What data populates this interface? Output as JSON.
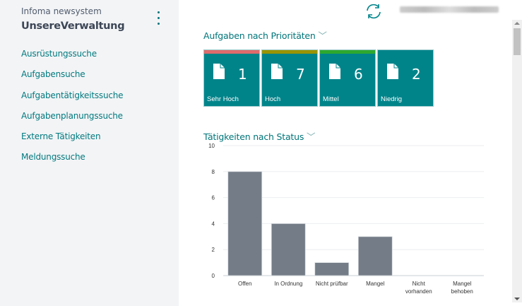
{
  "sidebar": {
    "app_name": "Infoma newsystem",
    "company": "UnsereVerwaltung",
    "items": [
      "Ausrüstungssuche",
      "Aufgabensuche",
      "Aufgabentätigkeitssuche",
      "Aufgabenplanungssuche",
      "Externe Tätigkeiten",
      "Meldungssuche"
    ]
  },
  "priorities": {
    "title": "Aufgaben nach Prioritäten",
    "tiles": [
      {
        "label": "Sehr Hoch",
        "count": "1",
        "color": "#e06b6b"
      },
      {
        "label": "Hoch",
        "count": "7",
        "color": "#9a9400"
      },
      {
        "label": "Mittel",
        "count": "6",
        "color": "#2ea82e"
      },
      {
        "label": "Niedrig",
        "count": "2",
        "color": ""
      }
    ]
  },
  "chart_data": {
    "type": "bar",
    "title": "Tätigkeiten nach Status",
    "categories": [
      [
        "Offen"
      ],
      [
        "In Ordnung"
      ],
      [
        "Nicht prüfbar"
      ],
      [
        "Mangel"
      ],
      [
        "Nicht",
        "vorhanden"
      ],
      [
        "Mangel",
        "behoben"
      ]
    ],
    "values": [
      8,
      4,
      1,
      3,
      0,
      0
    ],
    "ylim": [
      0,
      10
    ],
    "yticks": [
      0,
      2,
      4,
      6,
      8,
      10
    ],
    "grid": true,
    "bar_color": "#737c87"
  }
}
